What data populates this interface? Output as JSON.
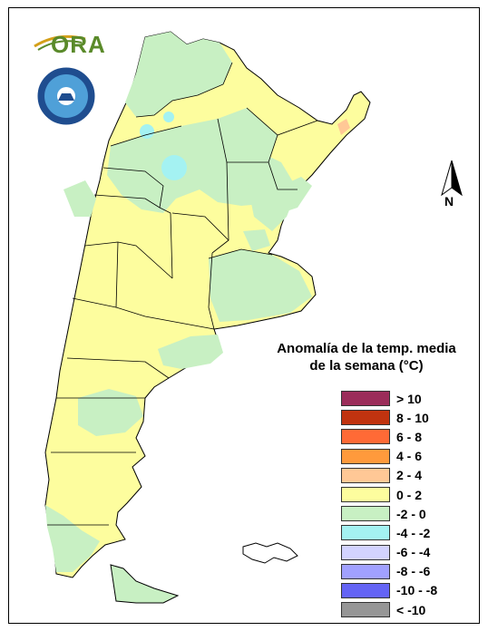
{
  "logo": {
    "text": "ORA"
  },
  "north_arrow": {
    "label": "N"
  },
  "legend": {
    "title_line1": "Anomalía de la temp. media",
    "title_line2": "de la semana (°C)",
    "items": [
      {
        "label": "> 10",
        "color": "#9b2d5a"
      },
      {
        "label": "8 - 10",
        "color": "#c0330f"
      },
      {
        "label": "6 - 8",
        "color": "#ff6a36"
      },
      {
        "label": "4 - 6",
        "color": "#ff9a3c"
      },
      {
        "label": "2 - 4",
        "color": "#ffc896"
      },
      {
        "label": "0 - 2",
        "color": "#fdfd9e"
      },
      {
        "label": "-2 - 0",
        "color": "#c8f0c3"
      },
      {
        "label": "-4 - -2",
        "color": "#a4f2f2"
      },
      {
        "label": "-6 - -4",
        "color": "#d3d3ff"
      },
      {
        "label": "-8 - -6",
        "color": "#a1a1ff"
      },
      {
        "label": "-10 - -8",
        "color": "#6464f5"
      },
      {
        "label": "< -10",
        "color": "#969696"
      }
    ]
  },
  "colors": {
    "warm_0_2": "#fdfd9e",
    "cool_-2_0": "#c8f0c3",
    "cold_-4_-2": "#a4f2f2",
    "hot_2_4": "#ffc896"
  }
}
